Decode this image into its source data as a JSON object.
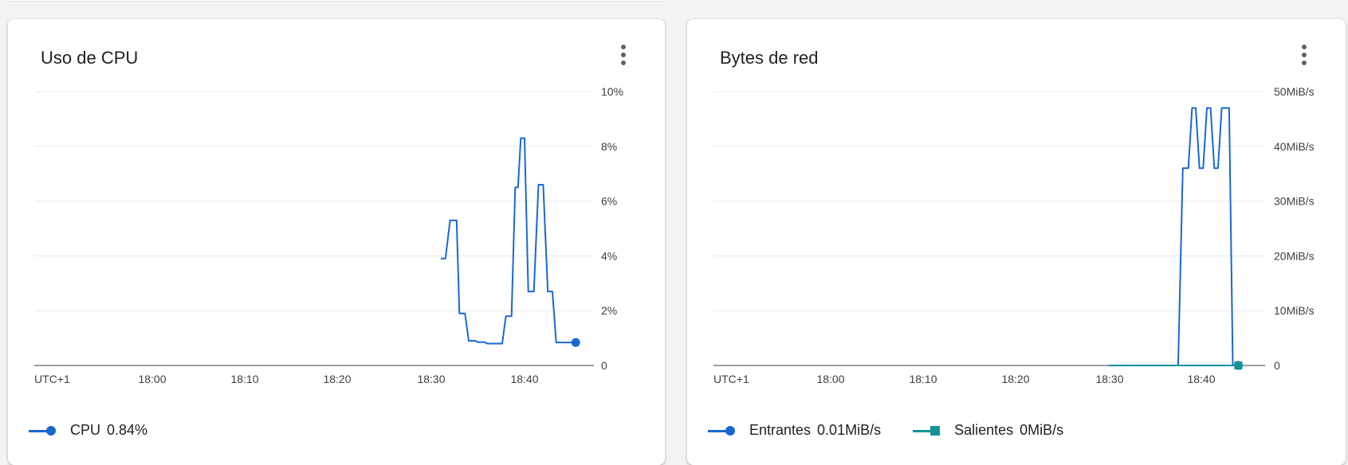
{
  "chart_data": [
    {
      "id": "cpu",
      "type": "line",
      "title": "Uso de CPU",
      "x_tick_labels": [
        "UTC+1",
        "18:00",
        "18:10",
        "18:20",
        "18:30",
        "18:40"
      ],
      "y_tick_labels": [
        "10%",
        "8%",
        "6%",
        "4%",
        "2%",
        "0"
      ],
      "ylim": [
        0,
        10
      ],
      "y_unit": "%",
      "grid": true,
      "legend_position": "bottom-left",
      "series": [
        {
          "name": "CPU",
          "legend_value": "0.84%",
          "color": "#1967d2",
          "marker": "circle",
          "x": [
            "18:31",
            "18:31.5",
            "18:32",
            "18:32.7",
            "18:33",
            "18:33.6",
            "18:34",
            "18:34.7",
            "18:35",
            "18:35.7",
            "18:36",
            "18:37",
            "18:37.6",
            "18:38",
            "18:38.6",
            "18:39",
            "18:39.3",
            "18:39.6",
            "18:40",
            "18:40.4",
            "18:41",
            "18:41.5",
            "18:42",
            "18:42.5",
            "18:43",
            "18:43.4",
            "18:44",
            "18:45",
            "18:45.5"
          ],
          "values": [
            3.9,
            3.9,
            5.3,
            5.3,
            1.9,
            1.9,
            0.9,
            0.9,
            0.85,
            0.85,
            0.8,
            0.8,
            0.8,
            1.8,
            1.8,
            6.5,
            6.5,
            8.3,
            8.3,
            2.7,
            2.7,
            6.6,
            6.6,
            2.7,
            2.7,
            0.84,
            0.84,
            0.84,
            0.84
          ]
        }
      ]
    },
    {
      "id": "net",
      "type": "line",
      "title": "Bytes de red",
      "x_tick_labels": [
        "UTC+1",
        "18:00",
        "18:10",
        "18:20",
        "18:30",
        "18:40"
      ],
      "y_tick_labels": [
        "50MiB/s",
        "40MiB/s",
        "30MiB/s",
        "20MiB/s",
        "10MiB/s",
        "0"
      ],
      "ylim": [
        0,
        50
      ],
      "y_unit": "MiB/s",
      "grid": true,
      "legend_position": "bottom-left",
      "series": [
        {
          "name": "Entrantes",
          "legend_value": "0.01MiB/s",
          "color": "#1967d2",
          "marker": "circle",
          "x": [
            "18:30",
            "18:37",
            "18:37.5",
            "18:38",
            "18:38.6",
            "18:39",
            "18:39.4",
            "18:39.8",
            "18:40.2",
            "18:40.6",
            "18:41",
            "18:41.4",
            "18:41.8",
            "18:42.2",
            "18:42.6",
            "18:43",
            "18:43.4",
            "18:44"
          ],
          "values": [
            0,
            0,
            0,
            36,
            36,
            47,
            47,
            36,
            36,
            47,
            47,
            36,
            36,
            47,
            47,
            47,
            0.01,
            0.01
          ]
        },
        {
          "name": "Salientes",
          "legend_value": "0MiB/s",
          "color": "#12939a",
          "marker": "square",
          "x": [
            "18:30",
            "18:44"
          ],
          "values": [
            0,
            0
          ]
        }
      ]
    }
  ],
  "legend_labels": {
    "cpu": [
      {
        "name": "CPU",
        "value": "0.84%"
      }
    ],
    "net": [
      {
        "name": "Entrantes",
        "value": "0.01MiB/s"
      },
      {
        "name": "Salientes",
        "value": "0MiB/s"
      }
    ]
  },
  "icons": {
    "menu": "more-vert-icon"
  },
  "colors": {
    "line_primary": "#1967d2",
    "line_secondary": "#12939a",
    "grid": "#e8eaed",
    "axis": "#5f6368",
    "text": "#202124",
    "tick_text": "#3c4043"
  }
}
